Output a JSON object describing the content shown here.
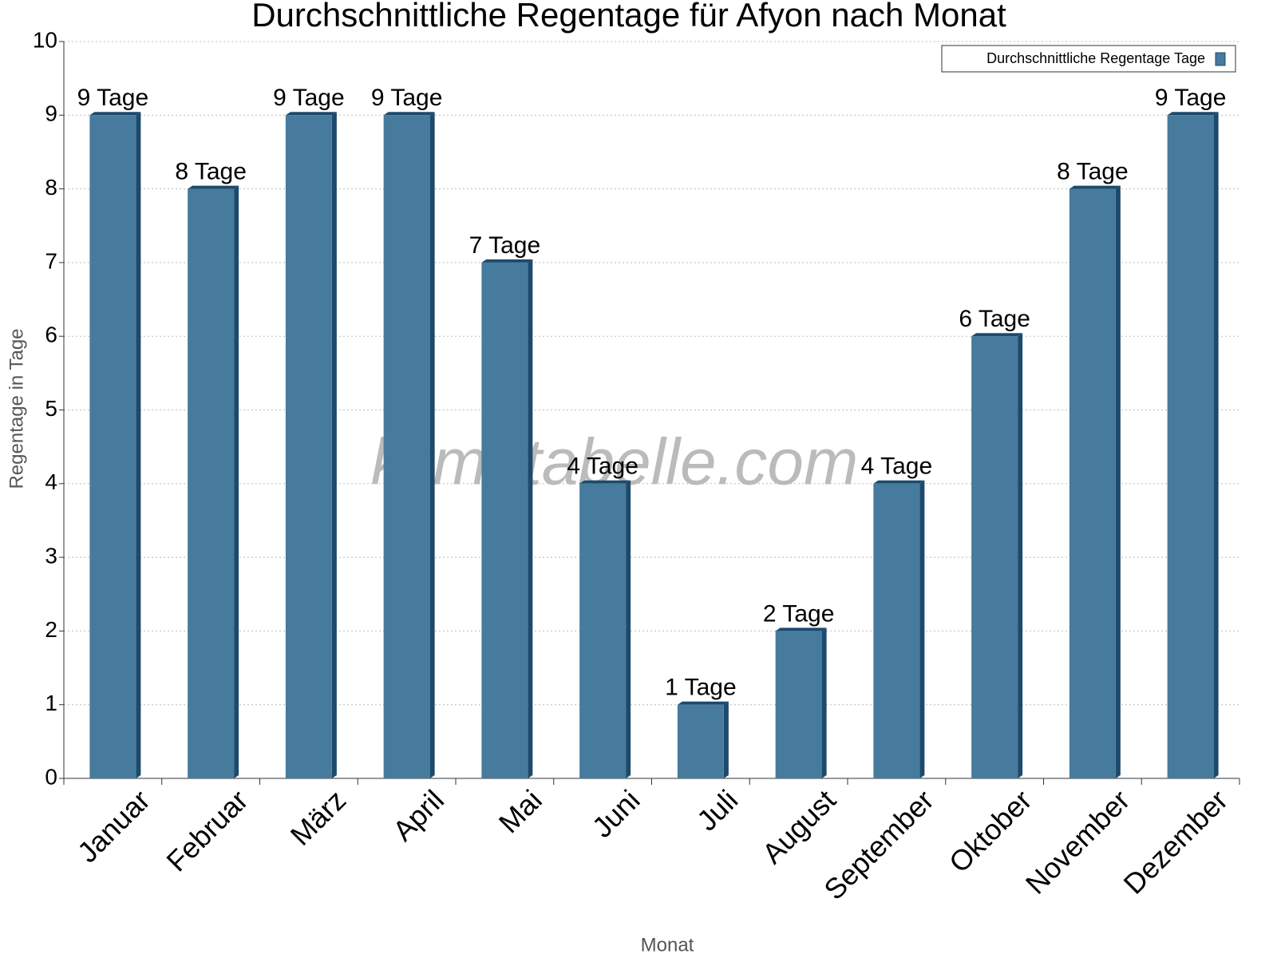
{
  "chart_data": {
    "type": "bar",
    "title": "Durchschnittliche Regentage für Afyon nach Monat",
    "x_label": "Monat",
    "y_label": "Regentage in Tage",
    "watermark": "klimatabelle.com",
    "categories": [
      "Januar",
      "Februar",
      "März",
      "April",
      "Mai",
      "Juni",
      "Juli",
      "August",
      "September",
      "Oktober",
      "November",
      "Dezember"
    ],
    "series": [
      {
        "name": "Durchschnittliche Regentage Tage",
        "color": "#467b9d",
        "values": [
          9,
          8,
          9,
          9,
          7,
          4,
          1,
          2,
          4,
          6,
          8,
          9
        ],
        "value_labels": [
          "9 Tage",
          "8 Tage",
          "9 Tage",
          "9 Tage",
          "7 Tage",
          "4 Tage",
          "1 Tage",
          "2 Tage",
          "4 Tage",
          "6 Tage",
          "8 Tage",
          "9 Tage"
        ]
      }
    ],
    "ylim": [
      0,
      10
    ],
    "yticks": [
      0,
      1,
      2,
      3,
      4,
      5,
      6,
      7,
      8,
      9,
      10
    ],
    "grid": true,
    "legend": "top-right"
  }
}
